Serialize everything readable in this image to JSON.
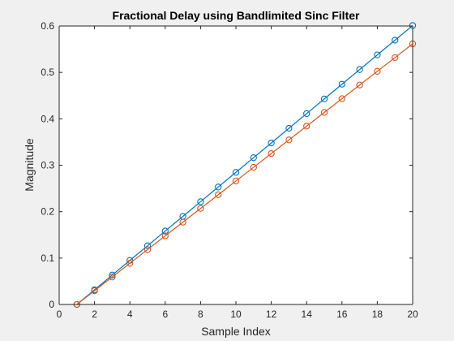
{
  "chart_data": {
    "type": "line",
    "title": "Fractional Delay using Bandlimited Sinc Filter",
    "xlabel": "Sample Index",
    "ylabel": "Magnitude",
    "xlim": [
      0,
      20
    ],
    "ylim": [
      0,
      0.6
    ],
    "xticks": [
      0,
      2,
      4,
      6,
      8,
      10,
      12,
      14,
      16,
      18,
      20
    ],
    "yticks": [
      0,
      0.1,
      0.2,
      0.3,
      0.4,
      0.5,
      0.6
    ],
    "xtick_labels": [
      "0",
      "2",
      "4",
      "6",
      "8",
      "10",
      "12",
      "14",
      "16",
      "18",
      "20"
    ],
    "ytick_labels": [
      "0",
      "0.1",
      "0.2",
      "0.3",
      "0.4",
      "0.5",
      "0.6"
    ],
    "grid": false,
    "legend": "none",
    "x": [
      1,
      2,
      3,
      4,
      5,
      6,
      7,
      8,
      9,
      10,
      11,
      12,
      13,
      14,
      15,
      16,
      17,
      18,
      19,
      20
    ],
    "series": [
      {
        "style": "line with circle markers",
        "color": "#0072BD",
        "values": [
          0,
          0.0316,
          0.0633,
          0.0949,
          0.1265,
          0.1582,
          0.1898,
          0.2214,
          0.2531,
          0.2847,
          0.3163,
          0.3479,
          0.3796,
          0.4112,
          0.4428,
          0.4745,
          0.5061,
          0.5377,
          0.5694,
          0.601
        ]
      },
      {
        "style": "line with circle markers",
        "color": "#D95319",
        "values": [
          0,
          0.0296,
          0.0591,
          0.0887,
          0.1182,
          0.1478,
          0.1773,
          0.2069,
          0.2364,
          0.266,
          0.2955,
          0.3251,
          0.3546,
          0.3842,
          0.4137,
          0.4433,
          0.4728,
          0.5024,
          0.5319,
          0.5615
        ]
      }
    ]
  }
}
